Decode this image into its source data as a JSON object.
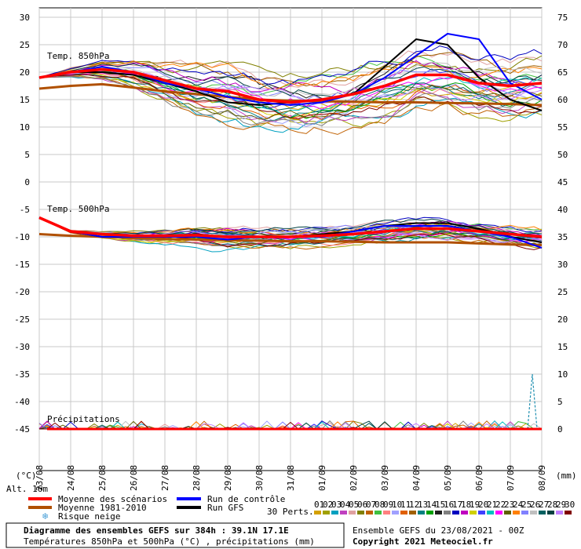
{
  "chart_data": {
    "type": "line",
    "title": "Diagramme des ensembles GEFS sur 384h : 39.1N 17.1E",
    "subtitle": "Températures 850hPa et 500hPa (°C) , précipitations (mm)",
    "run_label": "Ensemble GEFS du 23/08/2021 - 00Z",
    "copyright": "Copyright 2021 Meteociel.fr",
    "altitude": "Alt. 16m",
    "left_unit": "(°C)",
    "right_unit": "(mm)",
    "left_ticks": [
      30,
      25,
      20,
      15,
      10,
      5,
      0,
      -5,
      -10,
      -15,
      -20,
      -25,
      -30,
      -35,
      -40,
      -45
    ],
    "right_ticks": [
      75,
      70,
      65,
      60,
      55,
      50,
      45,
      40,
      35,
      30,
      25,
      20,
      15,
      10,
      5,
      0
    ],
    "ylim": [
      -45,
      30
    ],
    "x_dates": [
      "23/08",
      "24/08",
      "25/08",
      "26/08",
      "27/08",
      "28/08",
      "29/08",
      "30/08",
      "31/08",
      "01/09",
      "02/09",
      "03/09",
      "04/09",
      "05/09",
      "06/09",
      "07/09",
      "08/09"
    ],
    "panel_labels": {
      "t850": "Temp. 850hPa",
      "t500": "Temp. 500hPa",
      "precip": "Précipitations"
    },
    "legend": {
      "mean": "Moyenne des scénarios",
      "clim": "Moyenne 1981-2010",
      "snow": "Risque neige",
      "control": "Run de contrôle",
      "gfs": "Run GFS",
      "perts_label": "30 Perts."
    },
    "pert_numbers": [
      "01",
      "02",
      "03",
      "04",
      "05",
      "06",
      "07",
      "08",
      "09",
      "10",
      "11",
      "12",
      "13",
      "14",
      "15",
      "16",
      "17",
      "18",
      "19",
      "20",
      "21",
      "22",
      "23",
      "24",
      "25",
      "26",
      "27",
      "28",
      "29",
      "30"
    ],
    "pert_colors": [
      "#d4a000",
      "#a0a000",
      "#00a0c0",
      "#c040c0",
      "#e0a0a0",
      "#808000",
      "#c06000",
      "#40c040",
      "#ff8080",
      "#a0a0ff",
      "#e06000",
      "#a06000",
      "#008080",
      "#00a000",
      "#202020",
      "#808080",
      "#0000c0",
      "#c000c0",
      "#d0d000",
      "#4040ff",
      "#00c0c0",
      "#ff00ff",
      "#606000",
      "#ff8000",
      "#8080ff",
      "#c0c0c0",
      "#006060",
      "#004040",
      "#c080ff",
      "#800000"
    ],
    "colors": {
      "mean": "#ff0000",
      "clim": "#b05000",
      "control": "#0000ff",
      "gfs": "#000000"
    },
    "series": [
      {
        "name": "Moyenne des scénarios",
        "panel": "t850",
        "x": [
          0,
          1,
          2,
          3,
          4,
          5,
          6,
          7,
          8,
          9,
          10,
          11,
          12,
          13,
          14,
          15,
          16
        ],
        "values": [
          19,
          20,
          20.5,
          20,
          18.5,
          17,
          16.5,
          15,
          14.5,
          15,
          16,
          17.5,
          19.5,
          19.5,
          18,
          17.5,
          18
        ]
      },
      {
        "name": "Moyenne 1981-2010",
        "panel": "t850",
        "x": [
          0,
          1,
          2,
          3,
          4,
          5,
          6,
          7,
          8,
          9,
          10,
          11,
          12,
          13,
          14,
          15,
          16
        ],
        "values": [
          17,
          17.5,
          17.8,
          17.2,
          16.5,
          16,
          15.5,
          15,
          14.8,
          14.7,
          14.6,
          14.5,
          14.5,
          14.4,
          14.3,
          14.2,
          14
        ]
      },
      {
        "name": "Run de contrôle",
        "panel": "t850",
        "x": [
          0,
          1,
          2,
          3,
          4,
          5,
          6,
          7,
          8,
          9,
          10,
          11,
          12,
          13,
          14,
          15,
          16
        ],
        "values": [
          19,
          20,
          21,
          20,
          18,
          17,
          15.5,
          14.5,
          14,
          14.5,
          16,
          19,
          23,
          27,
          26,
          18,
          15
        ]
      },
      {
        "name": "Run GFS",
        "panel": "t850",
        "x": [
          0,
          1,
          2,
          3,
          4,
          5,
          6,
          7,
          8,
          9,
          10,
          11,
          12,
          13,
          14,
          15,
          16
        ],
        "values": [
          19,
          20,
          20,
          19.5,
          18,
          16.5,
          14.5,
          14,
          14.5,
          15,
          16,
          21,
          26,
          25,
          19,
          15,
          13
        ]
      },
      {
        "name": "Moyenne des scénarios",
        "panel": "t500",
        "x": [
          0,
          1,
          2,
          3,
          4,
          5,
          6,
          7,
          8,
          9,
          10,
          11,
          12,
          13,
          14,
          15,
          16
        ],
        "values": [
          -6.5,
          -9,
          -9.5,
          -9.8,
          -9.8,
          -9.7,
          -10,
          -10,
          -10,
          -9.8,
          -9.5,
          -9,
          -8.5,
          -8.5,
          -9,
          -9.5,
          -10
        ]
      },
      {
        "name": "Moyenne 1981-2010",
        "panel": "t500",
        "x": [
          0,
          1,
          2,
          3,
          4,
          5,
          6,
          7,
          8,
          9,
          10,
          11,
          12,
          13,
          14,
          15,
          16
        ],
        "values": [
          -9.5,
          -9.8,
          -10,
          -10.2,
          -10.4,
          -10.5,
          -10.6,
          -10.7,
          -10.8,
          -10.8,
          -10.9,
          -11,
          -11,
          -11,
          -11.2,
          -11.4,
          -11.5
        ]
      },
      {
        "name": "Run de contrôle",
        "panel": "t500",
        "x": [
          0,
          1,
          2,
          3,
          4,
          5,
          6,
          7,
          8,
          9,
          10,
          11,
          12,
          13,
          14,
          15,
          16
        ],
        "values": [
          -6.5,
          -9,
          -10,
          -10,
          -10,
          -10,
          -10.5,
          -10,
          -10,
          -10,
          -9,
          -8,
          -8,
          -8,
          -9,
          -10,
          -12
        ]
      },
      {
        "name": "Run GFS",
        "panel": "t500",
        "x": [
          0,
          1,
          2,
          3,
          4,
          5,
          6,
          7,
          8,
          9,
          10,
          11,
          12,
          13,
          14,
          15,
          16
        ],
        "values": [
          -6.5,
          -9,
          -10,
          -10,
          -10,
          -9.5,
          -10,
          -10,
          -10,
          -9.5,
          -9,
          -8,
          -7.5,
          -7.5,
          -8.5,
          -10,
          -11
        ]
      }
    ],
    "precip_max": {
      "date_index": 15.7,
      "value_mm": 10
    },
    "grid": true
  }
}
